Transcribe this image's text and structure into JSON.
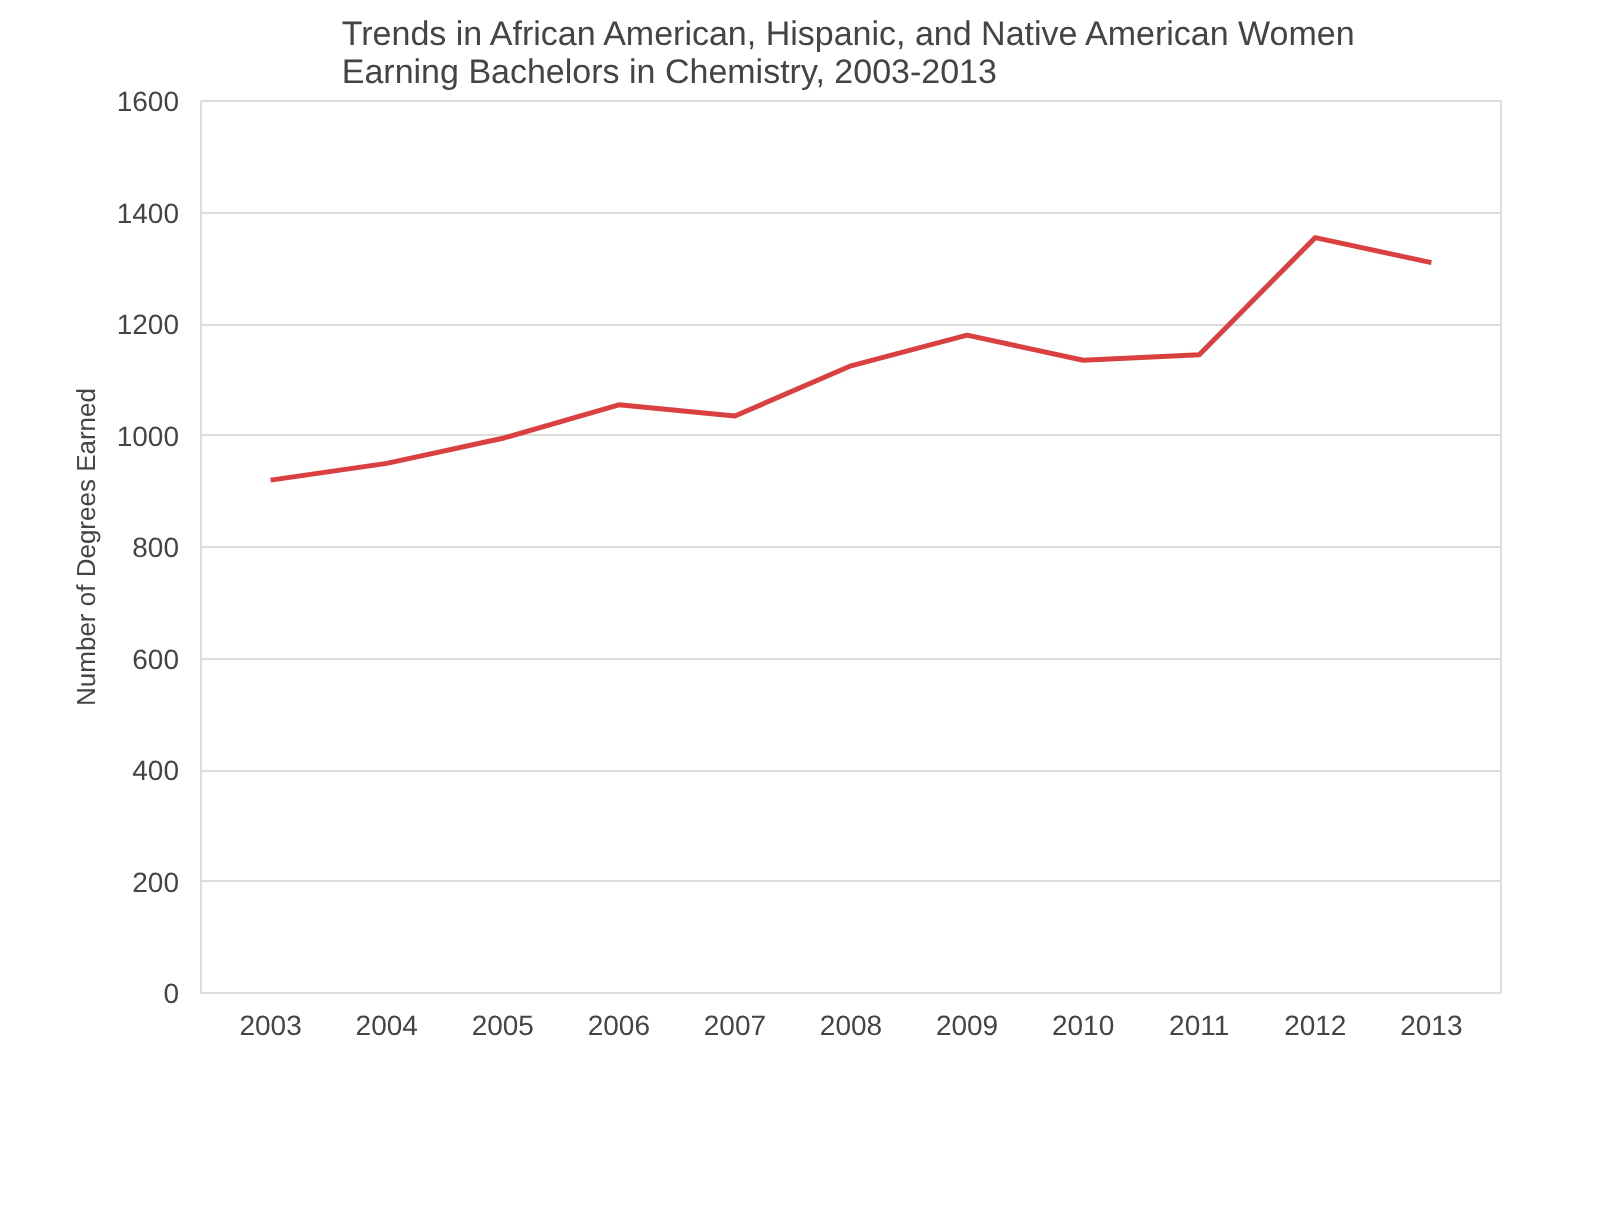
{
  "chart_data": {
    "type": "line",
    "title": "Trends in African American, Hispanic, and Native American Women\nEarning Bachelors in Chemistry, 2003-2013",
    "ylabel": "Number of Degrees Earned",
    "categories": [
      "2003",
      "2004",
      "2005",
      "2006",
      "2007",
      "2008",
      "2009",
      "2010",
      "2011",
      "2012",
      "2013"
    ],
    "series": [
      {
        "color": "#d9403f",
        "values": [
          920,
          950,
          995,
          1055,
          1035,
          1125,
          1180,
          1135,
          1145,
          1355,
          1310
        ]
      }
    ],
    "ylim": [
      0,
      1600
    ],
    "yticks": [
      0,
      200,
      400,
      600,
      800,
      1000,
      1200,
      1400,
      1600
    ],
    "grid": "y"
  }
}
